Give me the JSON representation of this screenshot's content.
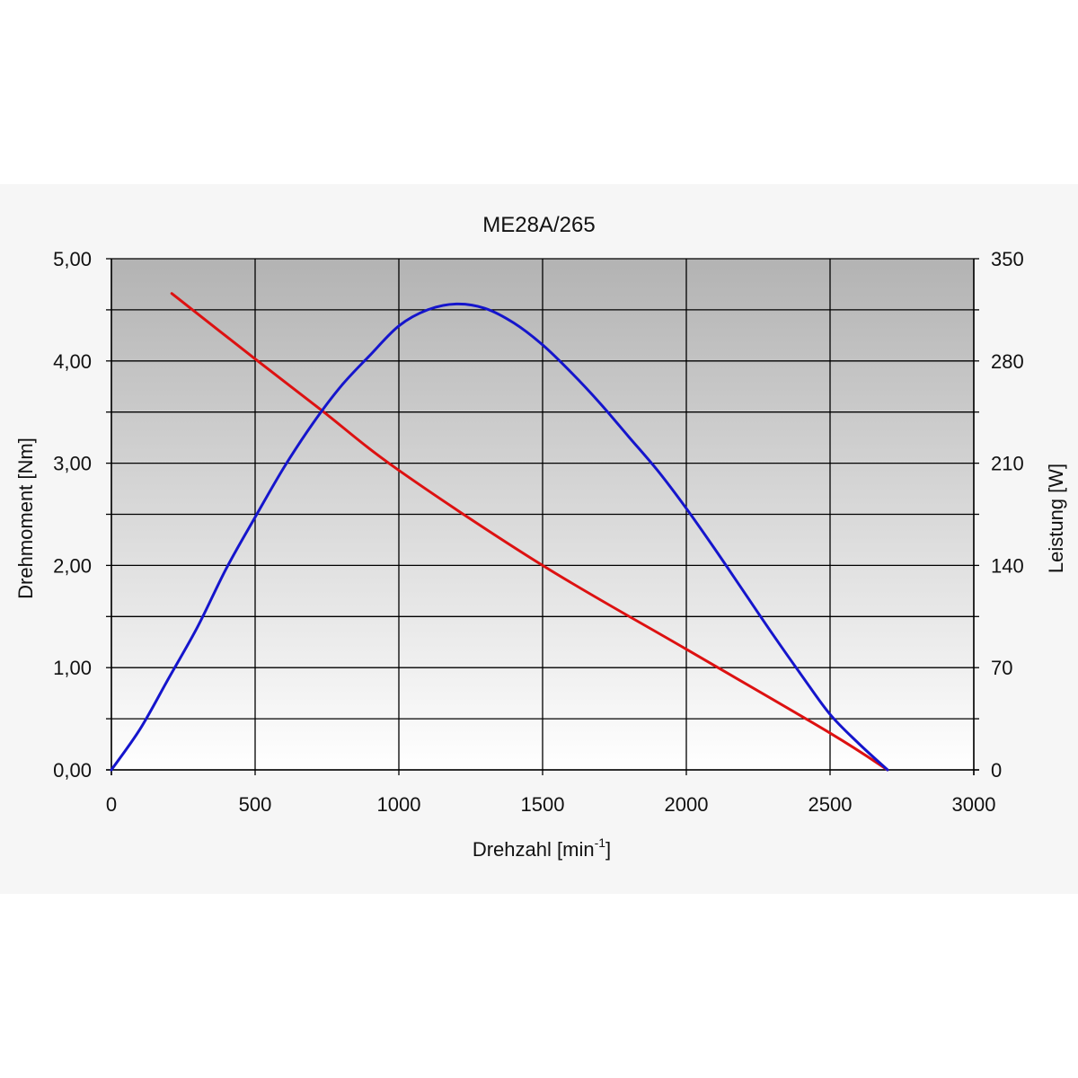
{
  "chart_data": {
    "type": "line",
    "title": "ME28A/265",
    "xlabel": "Drehzahl [min",
    "xlabel_sup": "-1",
    "xlabel_end": "]",
    "ylabel": "Drehmoment [Nm]",
    "y2label": "Leistung [W]",
    "xlim": [
      0,
      3000
    ],
    "ylim": [
      0,
      5
    ],
    "y2lim": [
      0,
      350
    ],
    "x_ticks": [
      "0",
      "500",
      "1000",
      "1500",
      "2000",
      "2500",
      "3000"
    ],
    "y_ticks": [
      "0,00",
      "1,00",
      "2,00",
      "3,00",
      "4,00",
      "5,00"
    ],
    "y2_ticks": [
      "0",
      "70",
      "140",
      "210",
      "280",
      "350"
    ],
    "grid": true,
    "legend": "none",
    "colors": {
      "torque": "#dd1111",
      "power": "#1515cc",
      "plot_top": "#b3b3b3",
      "plot_bottom": "#ffffff"
    },
    "series": [
      {
        "axis": "left",
        "color_key": "torque",
        "x": [
          210,
          500,
          730,
          1000,
          1500,
          2000,
          2500,
          2700
        ],
        "y": [
          4.66,
          4.02,
          3.52,
          2.93,
          2.0,
          1.18,
          0.36,
          0.0
        ]
      },
      {
        "axis": "right",
        "color_key": "power",
        "x": [
          0,
          100,
          200,
          300,
          400,
          500,
          600,
          700,
          800,
          900,
          1000,
          1100,
          1200,
          1300,
          1400,
          1500,
          1600,
          1700,
          1800,
          1900,
          2000,
          2100,
          2200,
          2300,
          2400,
          2500,
          2600,
          2700
        ],
        "y": [
          0,
          28,
          63,
          98,
          138,
          173,
          207,
          237,
          263,
          284,
          304,
          315,
          319,
          316,
          306,
          291,
          272,
          251,
          228,
          205,
          179,
          151,
          122,
          93,
          65,
          38,
          18,
          0
        ]
      }
    ]
  }
}
